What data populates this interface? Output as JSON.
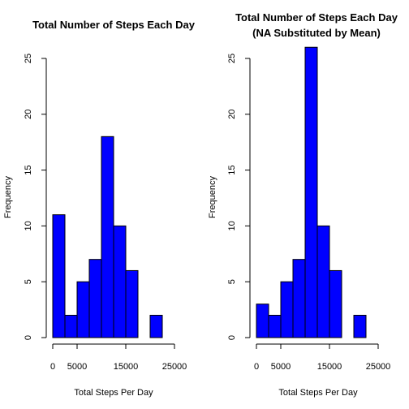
{
  "chart_data": [
    {
      "type": "bar",
      "title": "Total Number of Steps Each Day",
      "subtitle": "",
      "xlabel": "Total Steps Per Day",
      "ylabel": "Frequency",
      "bin_edges": [
        0,
        2500,
        5000,
        7500,
        10000,
        12500,
        15000,
        17500,
        20000,
        22500
      ],
      "values": [
        11,
        2,
        5,
        7,
        18,
        10,
        6,
        0,
        2
      ],
      "xticks": [
        0,
        5000,
        15000,
        25000
      ],
      "xtick_labels": [
        "0",
        "5000",
        "15000",
        "25000"
      ],
      "yticks": [
        0,
        5,
        10,
        15,
        20,
        25
      ],
      "ytick_labels": [
        "0",
        "5",
        "10",
        "15",
        "20",
        "25"
      ],
      "xlim": [
        0,
        25000
      ],
      "ylim": [
        0,
        25
      ],
      "bar_color": "#0000ff",
      "grid": false
    },
    {
      "type": "bar",
      "title": "Total Number of Steps Each Day",
      "subtitle": "(NA Substituted by Mean)",
      "xlabel": "Total Steps Per Day",
      "ylabel": "Frequency",
      "bin_edges": [
        0,
        2500,
        5000,
        7500,
        10000,
        12500,
        15000,
        17500,
        20000,
        22500
      ],
      "values": [
        3,
        2,
        5,
        7,
        26,
        10,
        6,
        0,
        2
      ],
      "xticks": [
        0,
        5000,
        15000,
        25000
      ],
      "xtick_labels": [
        "0",
        "5000",
        "15000",
        "25000"
      ],
      "yticks": [
        0,
        5,
        10,
        15,
        20,
        25
      ],
      "ytick_labels": [
        "0",
        "5",
        "10",
        "15",
        "20",
        "25"
      ],
      "xlim": [
        0,
        25000
      ],
      "ylim": [
        0,
        25
      ],
      "bar_color": "#0000ff",
      "grid": false
    }
  ]
}
